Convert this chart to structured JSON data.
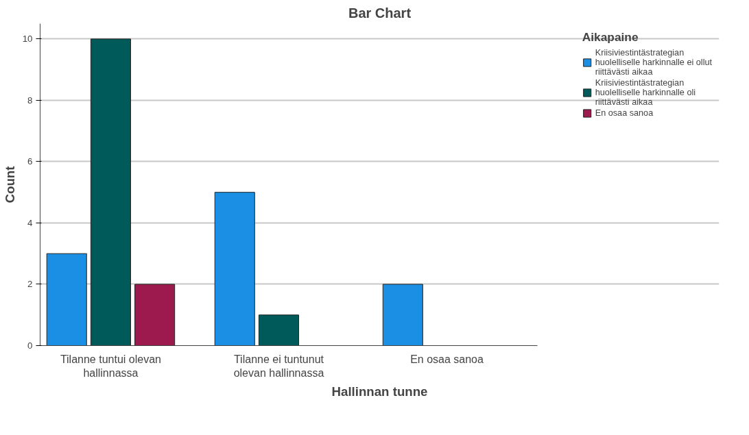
{
  "chart_data": {
    "type": "bar",
    "title": "Bar Chart",
    "xlabel": "Hallinnan tunne",
    "ylabel": "Count",
    "legend_title": "Aikapaine",
    "categories": [
      "Tilanne tuntui olevan hallinnassa",
      "Tilanne ei tuntunut olevan hallinnassa",
      "En osaa sanoa"
    ],
    "series": [
      {
        "name": "Kriisiviestintästrategian huolelliselle harkinnalle ei ollut riittävästi aikaa",
        "color": "#1a8fe3",
        "values": [
          3,
          5,
          2
        ]
      },
      {
        "name": "Kriisiviestintästrategian huolelliselle harkinnalle oli riittävästi aikaa",
        "color": "#005a5a",
        "values": [
          10,
          1,
          null
        ]
      },
      {
        "name": "En osaa sanoa",
        "color": "#9c1a4e",
        "values": [
          2,
          null,
          null
        ]
      }
    ],
    "ylim": [
      0,
      10.5
    ],
    "yticks": [
      0,
      2,
      4,
      6,
      8,
      10
    ],
    "grid": "y",
    "legend": "right"
  }
}
